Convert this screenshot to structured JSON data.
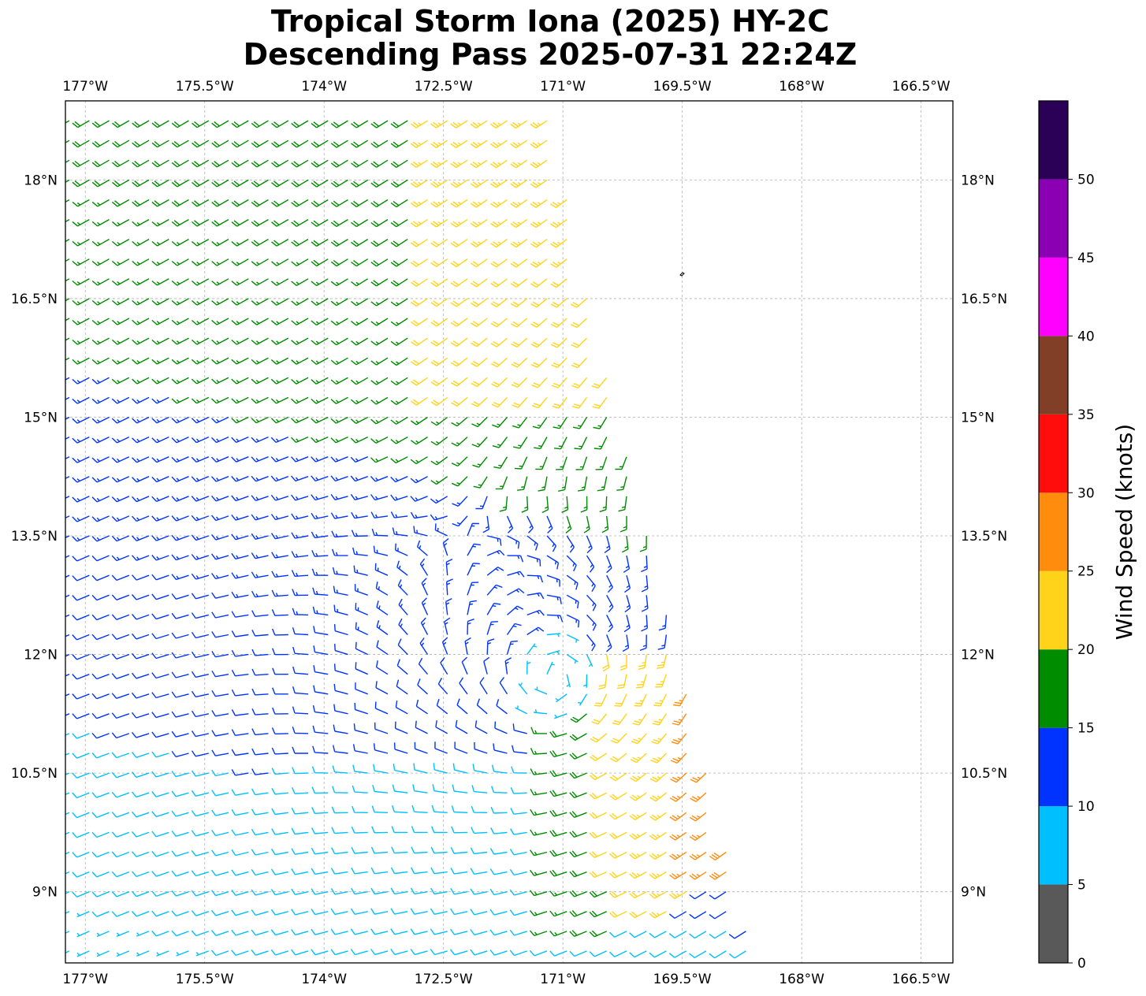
{
  "chart_data": {
    "type": "wind_barbs",
    "title_line1": "Tropical Storm Iona (2025) HY-2C",
    "title_line2": "Descending Pass 2025-07-31 22:24Z",
    "xlim": [
      -177.25,
      -166.1
    ],
    "ylim": [
      8.1,
      19.0
    ],
    "x_ticks": [
      -177,
      -175.5,
      -174,
      -172.5,
      -171,
      -169.5,
      -168,
      -166.5
    ],
    "x_tick_labels": [
      "177°W",
      "175.5°W",
      "174°W",
      "172.5°W",
      "171°W",
      "169.5°W",
      "168°W",
      "166.5°W"
    ],
    "y_ticks": [
      18,
      16.5,
      15,
      13.5,
      12,
      10.5,
      9
    ],
    "y_tick_labels": [
      "18°N",
      "16.5°N",
      "15°N",
      "13.5°N",
      "12°N",
      "10.5°N",
      "9°N"
    ],
    "grid": true,
    "storm_center": {
      "lon": -171.1,
      "lat": 11.7
    },
    "swath_east_edge": {
      "lon_at_top": -171.2,
      "lat_top": 18.8,
      "lon_at_bottom": -168.6,
      "lat_bottom": 8.1
    },
    "colorbar": {
      "label": "Wind Speed (knots)",
      "bounds": [
        0,
        5,
        10,
        15,
        20,
        25,
        30,
        35,
        40,
        45,
        50,
        55
      ],
      "tick_labels": [
        "0",
        "5",
        "10",
        "15",
        "20",
        "25",
        "30",
        "35",
        "40",
        "45",
        "50"
      ],
      "colors": [
        "#595959",
        "#00bfff",
        "#0033ff",
        "#008c00",
        "#ffd31a",
        "#ff8c0d",
        "#ff0d0d",
        "#823f28",
        "#ff00ff",
        "#8c00b3",
        "#2b0057"
      ]
    }
  }
}
